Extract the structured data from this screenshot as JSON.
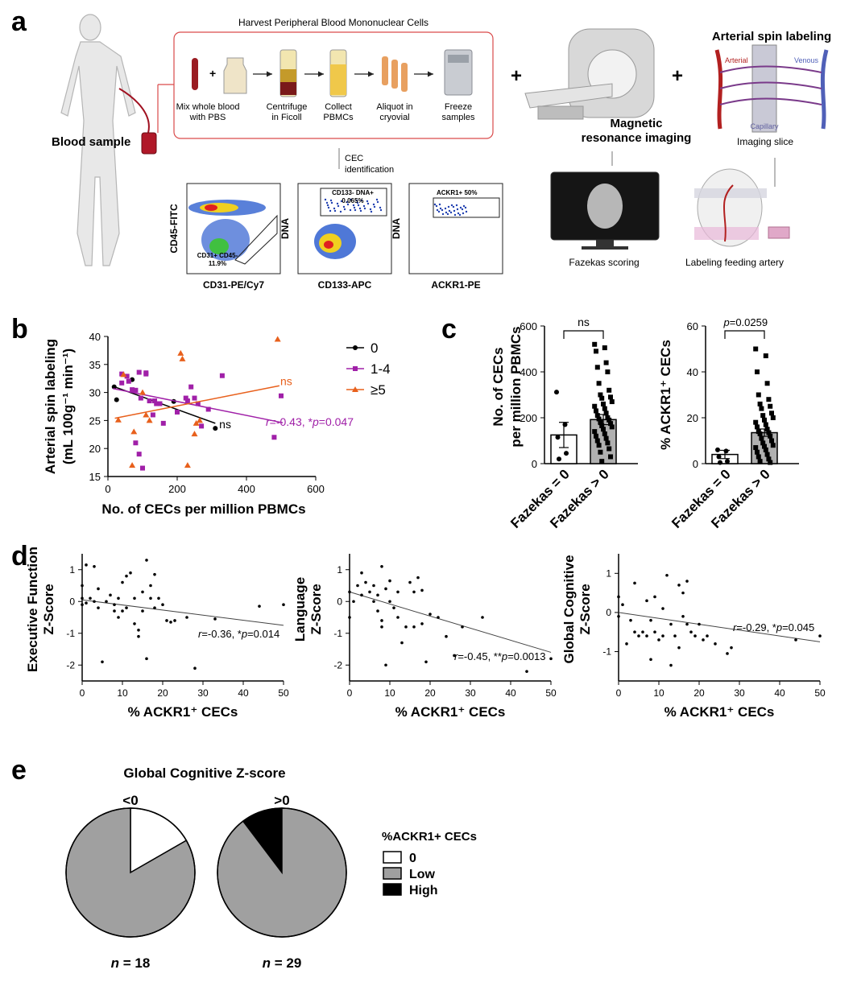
{
  "panel_letters": [
    "a",
    "b",
    "c",
    "d",
    "e"
  ],
  "panel_a": {
    "harvest_title": "Harvest Peripheral Blood Mononuclear Cells",
    "blood_sample": "Blood sample",
    "steps": [
      "Mix whole blood|with PBS",
      "Centrifuge|in Ficoll",
      "Collect|PBMCs",
      "Aliquot in|cryovial",
      "Freeze|samples"
    ],
    "cec_identification": "CEC|identification",
    "mri_label": "Magnetic|resonance imaging",
    "fazekas_scoring": "Fazekas scoring",
    "asl_title": "Arterial spin labeling",
    "arterial": "Arterial",
    "venous": "Venous",
    "capillary": "Capillary",
    "imaging_slice": "Imaging slice",
    "labeling_feeding_artery": "Labeling feeding artery",
    "flow_panels": [
      {
        "ylabel": "CD45-FITC",
        "xlabel": "CD31-PE/Cy7",
        "gate": "CD31+ CD45-|11.9%"
      },
      {
        "ylabel": "DNA",
        "xlabel": "CD133-APC",
        "gate": "CD133- DNA+|0.065%"
      },
      {
        "ylabel": "DNA",
        "xlabel": "ACKR1-PE",
        "gate": "ACKR1+ 50%"
      }
    ]
  },
  "chart_data": [
    {
      "id": "b",
      "type": "scatter",
      "xlabel": "No. of CECs per million PBMCs",
      "ylabel": "Arterial spin labeling|(mL 100g⁻¹ min⁻¹)",
      "xlim": [
        0,
        600
      ],
      "ylim": [
        15,
        40
      ],
      "xticks": [
        0,
        200,
        400,
        600
      ],
      "yticks": [
        15,
        20,
        25,
        30,
        35,
        40
      ],
      "series": [
        {
          "name": "0",
          "color": "#000000",
          "marker": "circle",
          "points": [
            [
              18,
              31
            ],
            [
              25,
              28.7
            ],
            [
              70,
              32.3
            ],
            [
              190,
              28.4
            ],
            [
              310,
              23.6
            ]
          ],
          "fit": [
            [
              15,
              31.1
            ],
            [
              310,
              24.5
            ]
          ],
          "fit_label": "ns"
        },
        {
          "name": "1-4",
          "color": "#a020a8",
          "marker": "square",
          "points": [
            [
              40,
              33.3
            ],
            [
              40,
              31.7
            ],
            [
              55,
              32.9
            ],
            [
              60,
              32
            ],
            [
              80,
              30.4
            ],
            [
              90,
              33.6
            ],
            [
              95,
              29
            ],
            [
              110,
              33.3
            ],
            [
              120,
              28.5
            ],
            [
              130,
              26
            ],
            [
              135,
              28.5
            ],
            [
              140,
              28
            ],
            [
              150,
              28
            ],
            [
              160,
              24.5
            ],
            [
              200,
              26.5
            ],
            [
              225,
              29
            ],
            [
              230,
              28.5
            ],
            [
              240,
              31
            ],
            [
              250,
              29
            ],
            [
              260,
              28
            ],
            [
              270,
              24
            ],
            [
              290,
              27
            ],
            [
              330,
              33
            ],
            [
              480,
              22
            ],
            [
              500,
              29.4
            ],
            [
              80,
              21
            ],
            [
              90,
              19
            ],
            [
              100,
              16.5
            ],
            [
              110,
              33.5
            ],
            [
              70,
              30.5
            ]
          ],
          "fit": [
            [
              15,
              30.7
            ],
            [
              505,
              24.6
            ]
          ],
          "fit_label": "r=-0.43, *p=0.047"
        },
        {
          "name": "≥5",
          "color": "#e8601c",
          "marker": "triangle",
          "points": [
            [
              30,
              25.1
            ],
            [
              45,
              33.2
            ],
            [
              70,
              17
            ],
            [
              75,
              23
            ],
            [
              100,
              30
            ],
            [
              110,
              26
            ],
            [
              120,
              25
            ],
            [
              210,
              37
            ],
            [
              215,
              36
            ],
            [
              230,
              17
            ],
            [
              250,
              22.6
            ],
            [
              255,
              24.5
            ],
            [
              265,
              25
            ],
            [
              490,
              39.5
            ]
          ],
          "fit": [
            [
              20,
              25.4
            ],
            [
              495,
              31.2
            ]
          ],
          "fit_label": "ns"
        }
      ]
    },
    {
      "id": "c1",
      "type": "bar",
      "ylabel": "No. of CECs|per million PBMCs",
      "categories": [
        "Fazekas = 0",
        "Fazekas > 0"
      ],
      "values": [
        125,
        192
      ],
      "errors": [
        55,
        22
      ],
      "ylim": [
        0,
        600
      ],
      "yticks": [
        0,
        200,
        400,
        600
      ],
      "annotation": "ns",
      "points": [
        [
          312,
          170,
          115,
          45,
          20
        ],
        [
          520,
          505,
          490,
          440,
          420,
          400,
          350,
          320,
          300,
          290,
          285,
          270,
          260,
          250,
          240,
          230,
          220,
          210,
          200,
          195,
          190,
          180,
          175,
          165,
          160,
          150,
          140,
          130,
          120,
          110,
          100,
          90,
          80,
          65,
          50,
          30,
          10
        ]
      ]
    },
    {
      "id": "c2",
      "type": "bar",
      "ylabel": "% ACKR1⁺ CECs",
      "categories": [
        "Fazekas = 0",
        "Fazekas > 0"
      ],
      "values": [
        4,
        13.5
      ],
      "errors": [
        1.8,
        1.6
      ],
      "ylim": [
        0,
        60
      ],
      "yticks": [
        0,
        20,
        40,
        60
      ],
      "annotation": "p=0.0259",
      "points": [
        [
          6,
          5.5,
          3,
          1,
          0.5
        ],
        [
          50,
          47,
          40,
          35,
          30,
          28,
          26,
          25,
          24,
          22,
          21,
          20,
          19,
          18,
          17,
          16,
          15,
          14,
          13.5,
          13,
          12,
          11,
          10,
          9,
          8,
          7.5,
          7,
          6,
          5,
          4,
          3,
          2,
          1,
          0.5
        ]
      ]
    },
    {
      "id": "d1",
      "type": "scatter",
      "xlabel": "% ACKR1⁺ CECs",
      "ylabel": "Executive Function|Z-Score",
      "xlim": [
        0,
        50
      ],
      "ylim": [
        -2.5,
        1.5
      ],
      "xticks": [
        0,
        10,
        20,
        30,
        40,
        50
      ],
      "yticks": [
        -2,
        -1,
        0,
        1
      ],
      "points": [
        [
          0,
          0.5
        ],
        [
          0,
          0.1
        ],
        [
          0,
          -0.1
        ],
        [
          1,
          1.15
        ],
        [
          1,
          -0.05
        ],
        [
          2,
          0.1
        ],
        [
          3,
          1.1
        ],
        [
          3,
          0
        ],
        [
          4,
          0.4
        ],
        [
          4,
          -0.2
        ],
        [
          5,
          -1.9
        ],
        [
          6,
          0
        ],
        [
          7,
          0.2
        ],
        [
          8,
          -0.1
        ],
        [
          8,
          -0.3
        ],
        [
          9,
          0.1
        ],
        [
          9,
          -0.5
        ],
        [
          10,
          0.6
        ],
        [
          10,
          -0.3
        ],
        [
          11,
          0.8
        ],
        [
          11,
          -0.2
        ],
        [
          12,
          0.9
        ],
        [
          13,
          0.1
        ],
        [
          13,
          -0.7
        ],
        [
          14,
          -0.9
        ],
        [
          14,
          -1.1
        ],
        [
          15,
          0.3
        ],
        [
          15,
          -0.3
        ],
        [
          16,
          1.3
        ],
        [
          16,
          -1.8
        ],
        [
          17,
          0.5
        ],
        [
          17,
          0.1
        ],
        [
          18,
          0.85
        ],
        [
          18,
          -0.2
        ],
        [
          19,
          0.1
        ],
        [
          20,
          -0.1
        ],
        [
          21,
          -0.6
        ],
        [
          22,
          -0.65
        ],
        [
          23,
          -0.6
        ],
        [
          26,
          -0.5
        ],
        [
          28,
          -2.1
        ],
        [
          33,
          -0.55
        ],
        [
          44,
          -0.15
        ],
        [
          50,
          -0.1
        ]
      ],
      "fit": [
        [
          0,
          0.05
        ],
        [
          50,
          -0.75
        ]
      ],
      "annotation": "r=-0.36, *p=0.014"
    },
    {
      "id": "d2",
      "type": "scatter",
      "xlabel": "% ACKR1⁺ CECs",
      "ylabel": "Language|Z-Score",
      "xlim": [
        0,
        50
      ],
      "ylim": [
        -2.5,
        1.5
      ],
      "xticks": [
        0,
        10,
        20,
        30,
        40,
        50
      ],
      "yticks": [
        -2,
        -1,
        0,
        1
      ],
      "points": [
        [
          0,
          0.3
        ],
        [
          0,
          -0.5
        ],
        [
          1,
          0
        ],
        [
          2,
          0.5
        ],
        [
          3,
          0.9
        ],
        [
          3,
          0.2
        ],
        [
          4,
          0.6
        ],
        [
          5,
          0.3
        ],
        [
          6,
          0.5
        ],
        [
          6,
          0
        ],
        [
          7,
          0.2
        ],
        [
          7,
          -0.3
        ],
        [
          8,
          1.1
        ],
        [
          8,
          -0.6
        ],
        [
          8,
          -0.8
        ],
        [
          9,
          -2
        ],
        [
          9,
          0.4
        ],
        [
          10,
          0.65
        ],
        [
          10,
          0
        ],
        [
          11,
          -0.2
        ],
        [
          12,
          0.3
        ],
        [
          12,
          -0.5
        ],
        [
          13,
          -1.3
        ],
        [
          14,
          -0.8
        ],
        [
          15,
          0.6
        ],
        [
          16,
          0.3
        ],
        [
          16,
          -0.8
        ],
        [
          17,
          0.75
        ],
        [
          18,
          0.35
        ],
        [
          18,
          -0.7
        ],
        [
          19,
          -1.9
        ],
        [
          20,
          -0.4
        ],
        [
          22,
          -0.5
        ],
        [
          24,
          -1.1
        ],
        [
          26,
          -1.7
        ],
        [
          28,
          -0.8
        ],
        [
          33,
          -0.5
        ],
        [
          44,
          -2.2
        ],
        [
          50,
          -1.8
        ]
      ],
      "fit": [
        [
          0,
          0.3
        ],
        [
          50,
          -1.6
        ]
      ],
      "annotation": "r=-0.45, **p=0.0013"
    },
    {
      "id": "d3",
      "type": "scatter",
      "xlabel": "% ACKR1⁺ CECs",
      "ylabel": "Global Cognitive|Z-Score",
      "xlim": [
        0,
        50
      ],
      "ylim": [
        -1.75,
        1.5
      ],
      "xticks": [
        0,
        10,
        20,
        30,
        40,
        50
      ],
      "yticks": [
        -1,
        0,
        1
      ],
      "points": [
        [
          0,
          0.4
        ],
        [
          0,
          -0.1
        ],
        [
          1,
          0.2
        ],
        [
          2,
          -0.8
        ],
        [
          3,
          -0.2
        ],
        [
          4,
          0.75
        ],
        [
          4,
          -0.5
        ],
        [
          5,
          -0.6
        ],
        [
          6,
          -0.5
        ],
        [
          7,
          0.3
        ],
        [
          7,
          -0.6
        ],
        [
          8,
          -0.2
        ],
        [
          8,
          -1.2
        ],
        [
          9,
          0.4
        ],
        [
          9,
          -0.5
        ],
        [
          10,
          -0.7
        ],
        [
          11,
          0.1
        ],
        [
          11,
          -0.6
        ],
        [
          12,
          0.95
        ],
        [
          13,
          -0.3
        ],
        [
          13,
          -1.35
        ],
        [
          14,
          -0.6
        ],
        [
          15,
          -0.9
        ],
        [
          15,
          0.7
        ],
        [
          16,
          -0.1
        ],
        [
          16,
          0.5
        ],
        [
          17,
          0.8
        ],
        [
          17,
          -0.3
        ],
        [
          18,
          -0.5
        ],
        [
          19,
          -0.6
        ],
        [
          20,
          -0.3
        ],
        [
          21,
          -0.7
        ],
        [
          22,
          -0.6
        ],
        [
          24,
          -0.8
        ],
        [
          27,
          -1.05
        ],
        [
          28,
          -0.9
        ],
        [
          44,
          -0.7
        ],
        [
          50,
          -0.6
        ]
      ],
      "fit": [
        [
          0,
          0
        ],
        [
          50,
          -0.75
        ]
      ],
      "annotation": "r=-0.29, *p=0.045"
    },
    {
      "id": "e",
      "type": "pie",
      "title": "Global Cognitive Z-score",
      "legend_title": "%ACKR1+ CECs",
      "legend": [
        "0",
        "Low",
        "High"
      ],
      "colors": [
        "#ffffff",
        "#a0a0a0",
        "#000000"
      ],
      "pies": [
        {
          "label": "<0",
          "n": "n = 18",
          "slices": [
            16.7,
            83.3,
            0
          ]
        },
        {
          "label": ">0",
          "n": "n = 29",
          "slices": [
            0,
            89.7,
            10.3
          ]
        }
      ]
    }
  ]
}
